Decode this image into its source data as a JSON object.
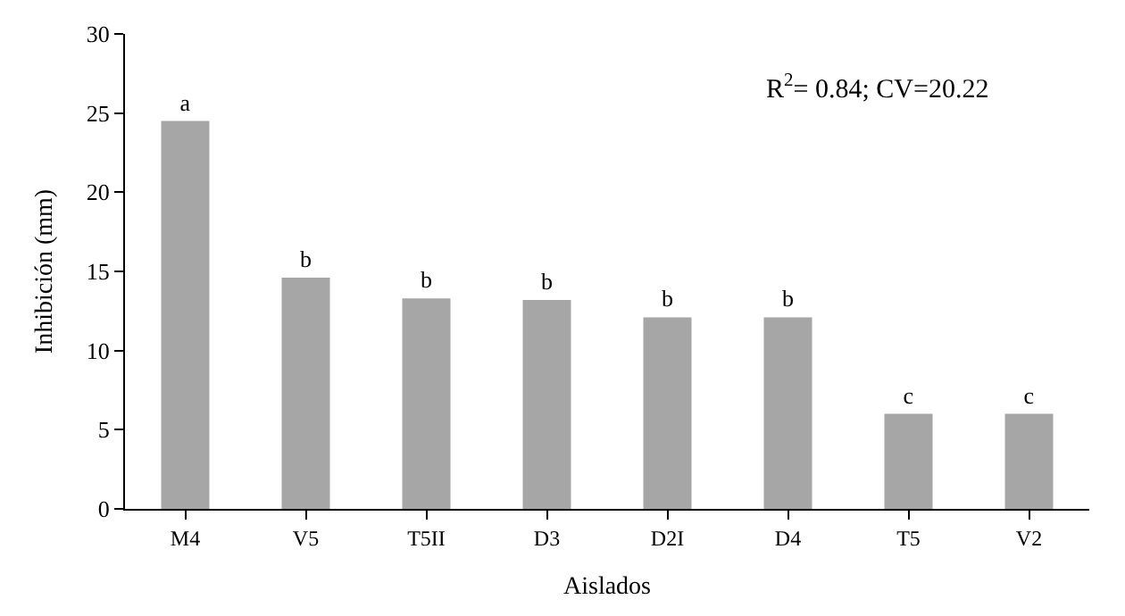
{
  "chart_data": {
    "type": "bar",
    "xlabel": "Aislados",
    "ylabel": "Inhibición (mm)",
    "categories": [
      "M4",
      "V5",
      "T5II",
      "D3",
      "D2I",
      "D4",
      "T5",
      "V2"
    ],
    "values": [
      24.5,
      14.6,
      13.3,
      13.2,
      12.1,
      12.1,
      6.0,
      6.0
    ],
    "value_labels": [
      "a",
      "b",
      "b",
      "b",
      "b",
      "b",
      "c",
      "c"
    ],
    "color": "#a6a6a6",
    "ylim": [
      0,
      30
    ],
    "yticks": [
      0,
      5,
      10,
      15,
      20,
      25,
      30
    ],
    "annotations": [
      "R$^{2}$= 0.84; CV=20.22"
    ]
  }
}
